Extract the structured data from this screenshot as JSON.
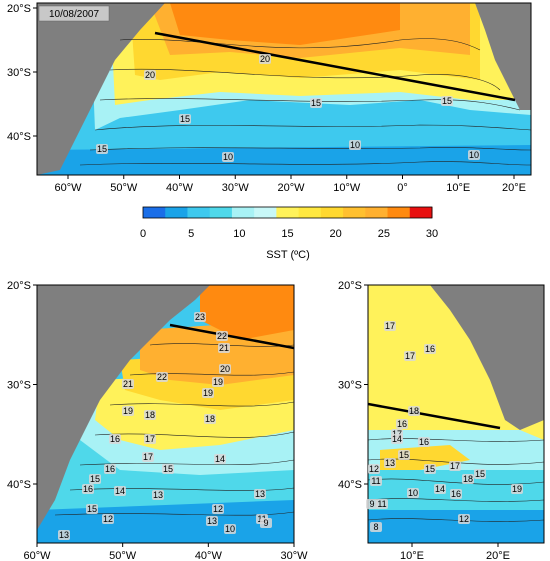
{
  "date_label": "10/08/2007",
  "colors": {
    "land": "#7f7f7f",
    "cold": "#1aa3e8",
    "cyan": "#4fd8ea",
    "lightcyan": "#a8f2f5",
    "yellow": "#fff25a",
    "yellow2": "#ffd830",
    "orange": "#ffb030",
    "orange2": "#ff8a10",
    "red": "#e81010"
  },
  "top_map": {
    "x_ticks": [
      "60°W",
      "50°W",
      "40°W",
      "30°W",
      "20°W",
      "10°W",
      "0°",
      "10°E",
      "20°E"
    ],
    "y_ticks": [
      "20°S",
      "30°S",
      "40°S"
    ],
    "contour_labels": [
      "20",
      "20",
      "15",
      "15",
      "15",
      "15",
      "10",
      "10",
      "10"
    ]
  },
  "colorbar": {
    "ticks": [
      "0",
      "5",
      "10",
      "15",
      "20",
      "25",
      "30"
    ],
    "label": "SST (ºC)"
  },
  "left_map": {
    "x_ticks": [
      "60°W",
      "50°W",
      "40°W",
      "30°W"
    ],
    "y_ticks": [
      "20°S",
      "30°S",
      "40°S"
    ],
    "contour_labels": [
      "23",
      "22",
      "21",
      "20",
      "22",
      "19",
      "21",
      "19",
      "18",
      "19",
      "17",
      "18",
      "16",
      "17",
      "16",
      "15",
      "14",
      "15",
      "16",
      "14",
      "13",
      "15",
      "12",
      "13",
      "12",
      "11",
      "13",
      "10",
      "9",
      "13"
    ]
  },
  "right_map": {
    "x_ticks": [
      "10°E",
      "20°E"
    ],
    "y_ticks": [
      "20°S",
      "30°S",
      "40°S"
    ],
    "contour_labels": [
      "17",
      "17",
      "16",
      "17",
      "16",
      "18",
      "14",
      "15",
      "16",
      "15",
      "17",
      "18",
      "19",
      "13",
      "12",
      "11",
      "10",
      "14",
      "15",
      "16",
      "12",
      "9",
      "11",
      "8"
    ]
  }
}
